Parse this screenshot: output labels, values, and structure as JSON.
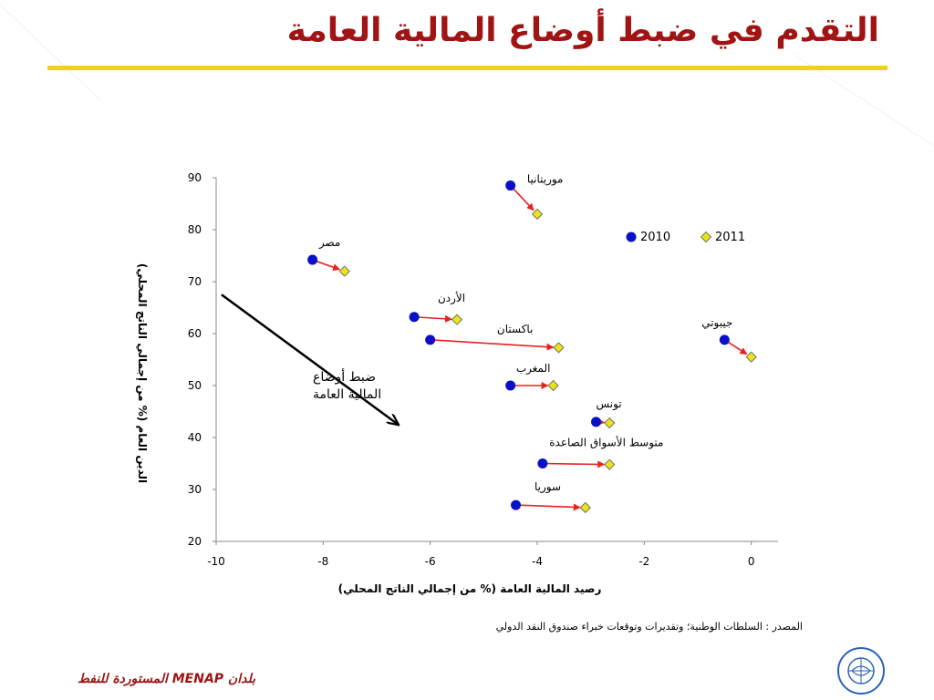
{
  "slide": {
    "title": "التقدم في ضبط أوضاع المالية العامة",
    "source": "المصدر : السلطات الوطنية؛ وتقديرات وتوقعات خبراء صندوق النقد الدولي",
    "footer": "بلدان MENAP المستوردة للنفط",
    "title_color": "#a01414",
    "rule_color": "#f3cf1f"
  },
  "chart_data": {
    "type": "scatter",
    "title": "",
    "xlabel": "رصيد المالية العامة (% من إجمالي الناتج المحلي)",
    "ylabel": "الدين العام (% من إجمالي الناتج المحلي)",
    "xlim": [
      -10,
      0.5
    ],
    "ylim": [
      20,
      90
    ],
    "x_ticks": [
      -10,
      -8,
      -6,
      -4,
      -2,
      0
    ],
    "y_ticks": [
      20,
      30,
      40,
      50,
      60,
      70,
      80,
      90
    ],
    "grid": false,
    "legend": {
      "placement": "top-right",
      "entries": [
        {
          "name": "2010",
          "marker": "circle",
          "color": "#0a10c8"
        },
        {
          "name": "2011",
          "marker": "diamond",
          "color": "#e8e31a"
        }
      ]
    },
    "arrow_color": "#e8211e",
    "points": [
      {
        "country": "موريتانيا",
        "x2010": -4.5,
        "y2010": 88.5,
        "x2011": -4.0,
        "y2011": 83.0
      },
      {
        "country": "مصر",
        "x2010": -8.2,
        "y2010": 74.2,
        "x2011": -7.6,
        "y2011": 72.0
      },
      {
        "country": "الأردن",
        "x2010": -6.3,
        "y2010": 63.2,
        "x2011": -5.5,
        "y2011": 62.7
      },
      {
        "country": "باكستان",
        "x2010": -6.0,
        "y2010": 58.8,
        "x2011": -3.6,
        "y2011": 57.3
      },
      {
        "country": "جيبوتي",
        "x2010": -0.5,
        "y2010": 58.8,
        "x2011": 0.0,
        "y2011": 55.5
      },
      {
        "country": "المغرب",
        "x2010": -4.5,
        "y2010": 50.0,
        "x2011": -3.7,
        "y2011": 50.0
      },
      {
        "country": "تونس",
        "x2010": -2.9,
        "y2010": 43.0,
        "x2011": -2.65,
        "y2011": 42.8
      },
      {
        "country": "متوسط الأسواق الصاعدة",
        "x2010": -3.9,
        "y2010": 35.0,
        "x2011": -2.65,
        "y2011": 34.8
      },
      {
        "country": "سوريا",
        "x2010": -4.4,
        "y2010": 27.0,
        "x2011": -3.1,
        "y2011": 26.5
      }
    ],
    "annotation": {
      "lines": [
        "ضبط أوضاع",
        "المالية العامة"
      ],
      "arrow_from": [
        -9.9,
        67.5
      ],
      "arrow_to": [
        -6.6,
        42.5
      ]
    }
  }
}
